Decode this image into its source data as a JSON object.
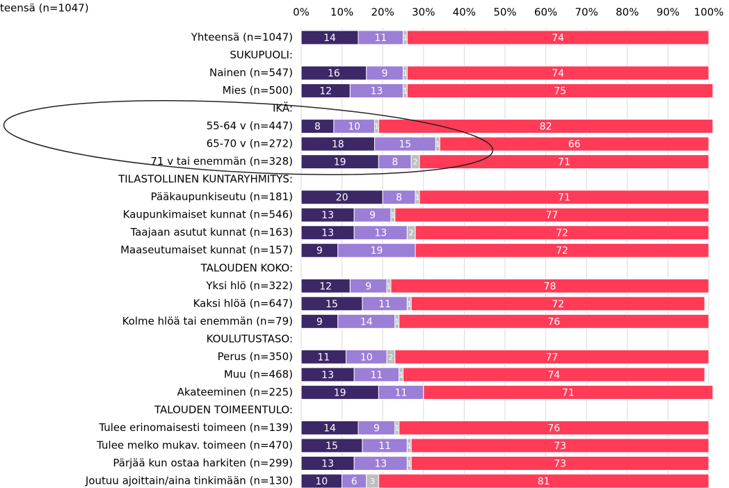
{
  "chart_data": {
    "type": "stacked-bar-horizontal",
    "title": "teensä (n=1047)",
    "categories": [
      "Yhteensä (n=1047)",
      "SUKUPUOLI:",
      "Nainen (n=547)",
      "Mies (n=500)",
      "IKÄ:",
      "55-64 v (n=447)",
      "65-70 v (n=272)",
      "71 v tai enemmän (n=328)",
      "TILASTOLLINEN KUNTARYHMITYS:",
      "Pääkaupunkiseutu (n=181)",
      "Kaupunkimaiset kunnat (n=546)",
      "Taajaan asutut kunnat (n=163)",
      "Maaseutumaiset kunnat (n=157)",
      "TALOUDEN KOKO:",
      "Yksi hlö (n=322)",
      "Kaksi hlöä (n=647)",
      "Kolme hlöä tai enemmän (n=79)",
      "KOULUTUSTASO:",
      "Perus (n=350)",
      "Muu (n=468)",
      "Akateeminen (n=225)",
      "TALOUDEN TOIMEENTULO:",
      "Tulee erinomaisesti toimeen (n=139)",
      "Tulee melko mukav. toimeen (n=470)",
      "Pärjää kun ostaa harkiten (n=299)",
      "Joutuu ajoittain/aina tinkimään (n=130)"
    ],
    "series": [
      {
        "color": "#3c2767",
        "values": [
          14,
          null,
          16,
          12,
          null,
          8,
          18,
          19,
          null,
          20,
          13,
          13,
          9,
          null,
          12,
          15,
          9,
          null,
          11,
          13,
          19,
          null,
          14,
          15,
          13,
          10
        ]
      },
      {
        "color": "#9b7ed6",
        "values": [
          11,
          null,
          9,
          13,
          null,
          10,
          15,
          8,
          null,
          8,
          9,
          13,
          19,
          null,
          9,
          11,
          14,
          null,
          10,
          11,
          11,
          null,
          9,
          11,
          13,
          6
        ]
      },
      {
        "color": "#bfbfbf",
        "values": [
          1,
          null,
          1,
          1,
          null,
          1,
          1,
          2,
          null,
          1,
          1,
          2,
          null,
          null,
          1,
          1,
          1,
          null,
          2,
          1,
          null,
          null,
          1,
          1,
          1,
          3
        ]
      },
      {
        "color": "#ff3b57",
        "values": [
          74,
          null,
          74,
          75,
          null,
          82,
          66,
          71,
          null,
          71,
          77,
          72,
          72,
          null,
          78,
          72,
          76,
          null,
          77,
          74,
          71,
          null,
          76,
          73,
          73,
          81
        ]
      }
    ],
    "xlim": [
      0,
      100
    ],
    "xticks": [
      {
        "value": 0,
        "label": "0%"
      },
      {
        "value": 10,
        "label": "10%"
      },
      {
        "value": 20,
        "label": "20%"
      },
      {
        "value": 30,
        "label": "30%"
      },
      {
        "value": 40,
        "label": "40%"
      },
      {
        "value": 50,
        "label": "50%"
      },
      {
        "value": 60,
        "label": "60%"
      },
      {
        "value": 70,
        "label": "70%"
      },
      {
        "value": 80,
        "label": "80%"
      },
      {
        "value": 90,
        "label": "90%"
      },
      {
        "value": 100,
        "label": "100%"
      }
    ],
    "grid": true
  }
}
